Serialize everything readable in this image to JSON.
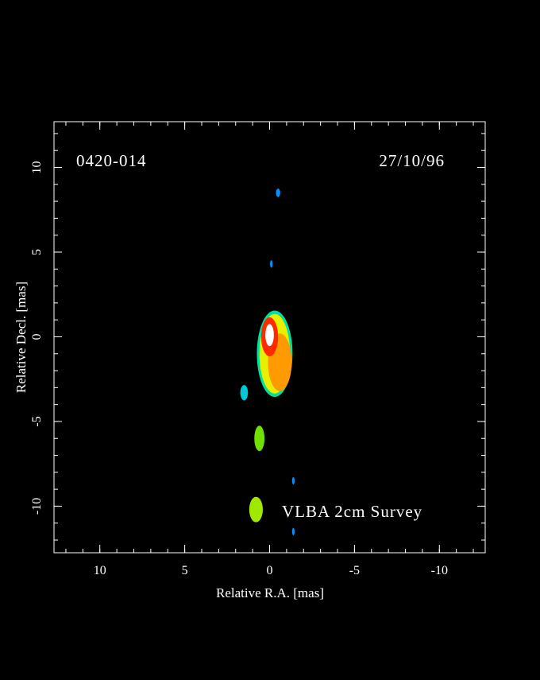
{
  "chart_data": {
    "type": "image",
    "title": "0420-014",
    "date": "27/10/96",
    "annotation": "VLBA 2cm Survey",
    "xlabel": "Relative R.A. [mas]",
    "ylabel": "Relative Decl. [mas]",
    "xlim": [
      12.7,
      -12.7
    ],
    "ylim": [
      -12.75,
      12.7
    ],
    "xticks": [
      10,
      5,
      0,
      -5,
      -10
    ],
    "yticks": [
      -10,
      -5,
      0,
      5,
      10
    ],
    "xminor": [
      12,
      11,
      10,
      9,
      8,
      7,
      6,
      5,
      4,
      3,
      2,
      1,
      0,
      -1,
      -2,
      -3,
      -4,
      -5,
      -6,
      -7,
      -8,
      -9,
      -10,
      -11,
      -12
    ],
    "yminor": [
      -12,
      -11,
      -10,
      -9,
      -8,
      -7,
      -6,
      -5,
      -4,
      -3,
      -2,
      -1,
      0,
      1,
      2,
      3,
      4,
      5,
      6,
      7,
      8,
      9,
      10,
      11,
      12
    ],
    "components": [
      {
        "x": -0.3,
        "y": -1.0,
        "w": 2.1,
        "h": 5.1,
        "color": "#00e0a0"
      },
      {
        "x": -0.3,
        "y": -1.0,
        "w": 1.8,
        "h": 4.7,
        "color": "#e8f000"
      },
      {
        "x": -0.6,
        "y": -1.5,
        "w": 1.4,
        "h": 3.4,
        "color": "#ff9a00"
      },
      {
        "x": 0.0,
        "y": 0.0,
        "w": 1.0,
        "h": 2.3,
        "color": "#ff2a00"
      },
      {
        "x": 0.0,
        "y": 0.1,
        "w": 0.5,
        "h": 1.3,
        "color": "#ffffff"
      },
      {
        "x": 1.5,
        "y": -3.3,
        "w": 0.45,
        "h": 0.9,
        "color": "#00c8d8"
      },
      {
        "x": 0.6,
        "y": -6.0,
        "w": 0.6,
        "h": 1.5,
        "color": "#70e000"
      },
      {
        "x": 0.8,
        "y": -10.2,
        "w": 0.8,
        "h": 1.5,
        "color": "#a0e800"
      },
      {
        "x": -0.5,
        "y": 8.5,
        "w": 0.25,
        "h": 0.5,
        "color": "#0090ff"
      },
      {
        "x": -0.1,
        "y": 4.3,
        "w": 0.15,
        "h": 0.45,
        "color": "#0090ff"
      },
      {
        "x": -1.4,
        "y": -8.5,
        "w": 0.15,
        "h": 0.45,
        "color": "#0090ff"
      },
      {
        "x": -1.4,
        "y": -11.5,
        "w": 0.15,
        "h": 0.45,
        "color": "#0090ff"
      }
    ]
  }
}
